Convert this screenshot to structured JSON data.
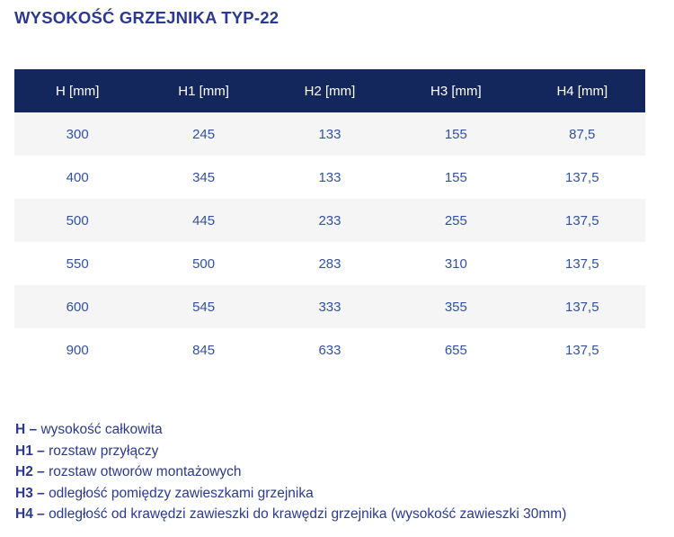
{
  "title": "WYSOKOŚĆ GRZEJNIKA TYP-22",
  "table": {
    "headers": [
      "H [mm]",
      "H1 [mm]",
      "H2 [mm]",
      "H3 [mm]",
      "H4 [mm]"
    ],
    "rows": [
      [
        "300",
        "245",
        "133",
        "155",
        "87,5"
      ],
      [
        "400",
        "345",
        "133",
        "155",
        "137,5"
      ],
      [
        "500",
        "445",
        "233",
        "255",
        "137,5"
      ],
      [
        "550",
        "500",
        "283",
        "310",
        "137,5"
      ],
      [
        "600",
        "545",
        "333",
        "355",
        "137,5"
      ],
      [
        "900",
        "845",
        "633",
        "655",
        "137,5"
      ]
    ]
  },
  "legend": [
    {
      "term": "H –",
      "description": "wysokość całkowita"
    },
    {
      "term": "H1 –",
      "description": "rozstaw przyłączy"
    },
    {
      "term": "H2 –",
      "description": "rozstaw otworów montażowych"
    },
    {
      "term": "H3 –",
      "description": "odległość pomiędzy zawieszkami grzejnika"
    },
    {
      "term": "H4 –",
      "description": "odległość od krawędzi zawieszki do krawędzi grzejnika (wysokość zawieszki 30mm)"
    }
  ],
  "colors": {
    "header_bg": "#13275c",
    "header_text": "#ffffff",
    "row_alt_bg": "#f5f5f6",
    "row_bg": "#ffffff",
    "cell_text": "#34519e",
    "title_text": "#2b3990",
    "legend_text": "#2b3990"
  }
}
